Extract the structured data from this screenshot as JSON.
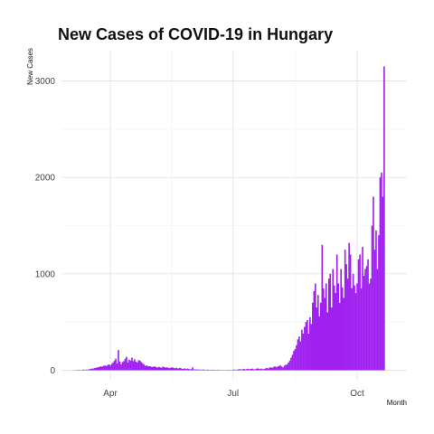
{
  "chart_data": {
    "type": "bar",
    "title": "New Cases of COVID-19 in Hungary",
    "xlabel": "Month",
    "ylabel": "New Cases",
    "xlim": [
      "2020-03-04",
      "2020-11-08"
    ],
    "ylim": [
      0,
      3300
    ],
    "y_ticks": [
      0,
      1000,
      2000,
      3000
    ],
    "x_ticks": [
      {
        "label": "Apr",
        "date": "2020-04-01"
      },
      {
        "label": "Jul",
        "date": "2020-07-01"
      },
      {
        "label": "Oct",
        "date": "2020-10-01"
      }
    ],
    "grid": true,
    "bar_color": "#A020F0",
    "series": [
      {
        "start_date": "2020-03-04",
        "values": [
          2,
          1,
          2,
          3,
          3,
          5,
          2,
          4,
          8,
          5,
          7,
          6,
          10,
          12,
          18,
          15,
          22,
          25,
          28,
          32,
          35,
          40,
          38,
          45,
          50,
          42,
          55,
          60,
          48,
          65,
          80,
          100,
          120,
          70,
          210,
          90,
          60,
          85,
          95,
          120,
          140,
          80,
          110,
          100,
          130,
          95,
          115,
          90,
          80,
          105,
          100,
          85,
          70,
          60,
          45,
          50,
          40,
          42,
          38,
          35,
          36,
          40,
          32,
          28,
          35,
          30,
          25,
          38,
          32,
          28,
          30,
          25,
          22,
          28,
          30,
          24,
          20,
          26,
          18,
          22,
          24,
          16,
          14,
          20,
          12,
          18,
          15,
          10,
          12,
          30,
          8,
          10,
          7,
          9,
          6,
          8,
          5,
          8,
          6,
          4,
          7,
          5,
          3,
          6,
          4,
          5,
          3,
          4,
          6,
          2,
          5,
          3,
          4,
          2,
          3,
          5,
          2,
          4,
          3,
          6,
          8,
          5,
          7,
          10,
          12,
          8,
          10,
          14,
          9,
          12,
          16,
          10,
          14,
          18,
          12,
          8,
          15,
          20,
          16,
          12,
          18,
          10,
          14,
          20,
          24,
          18,
          28,
          30,
          25,
          35,
          40,
          32,
          38,
          45,
          50,
          40,
          30,
          48,
          55,
          60,
          80,
          100,
          130,
          160,
          200,
          220,
          260,
          320,
          350,
          300,
          420,
          380,
          450,
          500,
          520,
          380,
          550,
          480,
          700,
          820,
          900,
          650,
          780,
          560,
          700,
          1300,
          850,
          750,
          900,
          600,
          950,
          1000,
          650,
          1050,
          880,
          800,
          1200,
          900,
          700,
          1050,
          860,
          750,
          1250,
          1100,
          950,
          1320,
          1200,
          850,
          1000,
          880,
          800,
          900,
          1150,
          1200,
          850,
          1280,
          980,
          1050,
          1080,
          1150,
          900,
          950,
          1500,
          1800,
          1250,
          1450,
          1050,
          1400,
          2000,
          2050,
          1800,
          3150
        ]
      }
    ]
  }
}
